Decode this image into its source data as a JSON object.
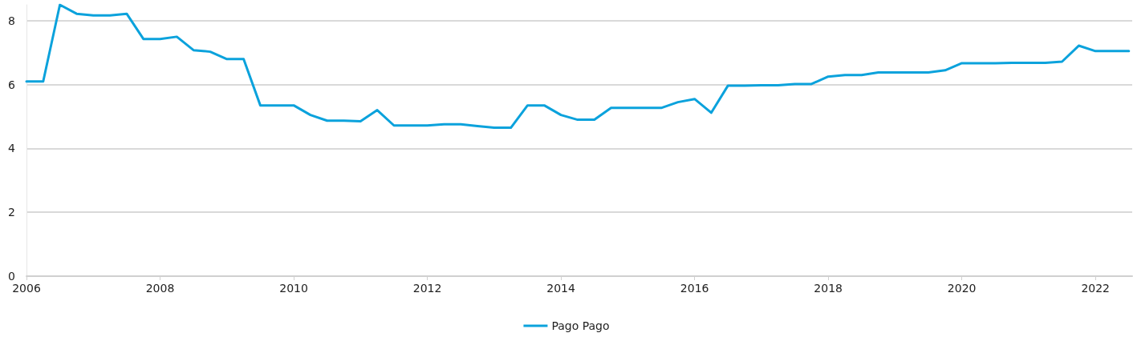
{
  "chart_data": {
    "type": "line",
    "x": [
      2006,
      2006.25,
      2006.5,
      2006.75,
      2007,
      2007.25,
      2007.5,
      2007.75,
      2008,
      2008.25,
      2008.5,
      2008.75,
      2009,
      2009.25,
      2009.5,
      2009.75,
      2010,
      2010.25,
      2010.5,
      2010.75,
      2011,
      2011.25,
      2011.5,
      2011.75,
      2012,
      2012.25,
      2012.5,
      2012.75,
      2013,
      2013.25,
      2013.5,
      2013.75,
      2014,
      2014.25,
      2014.5,
      2014.75,
      2015,
      2015.25,
      2015.5,
      2015.75,
      2016,
      2016.25,
      2016.5,
      2016.75,
      2017,
      2017.25,
      2017.5,
      2017.75,
      2018,
      2018.25,
      2018.5,
      2018.75,
      2019,
      2019.25,
      2019.5,
      2019.75,
      2020,
      2020.25,
      2020.5,
      2020.75,
      2021,
      2021.25,
      2021.5,
      2021.75,
      2022,
      2022.25,
      2022.5
    ],
    "series": [
      {
        "name": "Pago Pago",
        "color": "#0ba2dc",
        "values": [
          6.1,
          6.1,
          8.5,
          8.22,
          8.17,
          8.17,
          8.22,
          7.43,
          7.43,
          7.5,
          7.08,
          7.03,
          6.8,
          6.8,
          5.35,
          5.35,
          5.35,
          5.05,
          4.87,
          4.87,
          4.85,
          5.2,
          4.72,
          4.72,
          4.72,
          4.76,
          4.76,
          4.7,
          4.65,
          4.65,
          5.35,
          5.35,
          5.05,
          4.9,
          4.9,
          5.27,
          5.27,
          5.27,
          5.27,
          5.45,
          5.55,
          5.12,
          5.97,
          5.97,
          5.98,
          5.98,
          6.02,
          6.02,
          6.25,
          6.3,
          6.3,
          6.38,
          6.38,
          6.38,
          6.38,
          6.45,
          6.67,
          6.67,
          6.67,
          6.68,
          6.68,
          6.68,
          6.72,
          7.22,
          7.05,
          7.05,
          7.05
        ]
      }
    ],
    "xlim": [
      2006,
      2022.55
    ],
    "xticks": [
      2006,
      2008,
      2010,
      2012,
      2014,
      2016,
      2018,
      2020,
      2022
    ],
    "ylim": [
      0,
      8.5
    ],
    "yticks": [
      0,
      2,
      4,
      6,
      8
    ],
    "grid": "y",
    "legend": "bottom",
    "marker": "none",
    "line_style": "solid"
  }
}
